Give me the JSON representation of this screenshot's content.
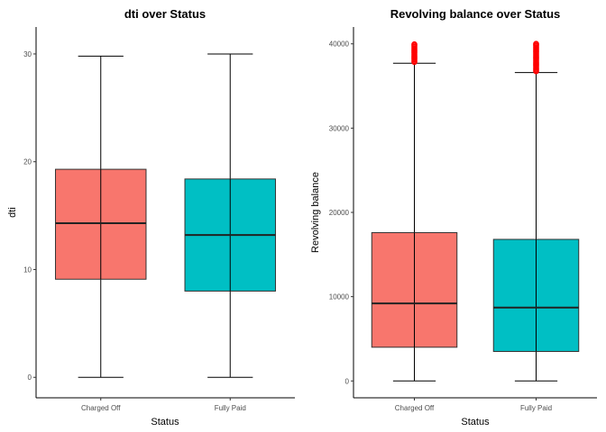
{
  "chart_data": [
    {
      "type": "box",
      "title": "dti over Status",
      "xlabel": "Status",
      "ylabel": "dti",
      "categories": [
        "Charged Off",
        "Fully Paid"
      ],
      "ylim": [
        -1.9,
        32.5
      ],
      "yticks": [
        0,
        10,
        20,
        30
      ],
      "grid": false,
      "boxes": [
        {
          "category": "Charged Off",
          "min": 0,
          "q1": 9.1,
          "median": 14.3,
          "q3": 19.3,
          "max": 29.8,
          "color": "#F8766D",
          "outliers": []
        },
        {
          "category": "Fully Paid",
          "min": 0,
          "q1": 8.0,
          "median": 13.2,
          "q3": 18.4,
          "max": 30.0,
          "color": "#00BFC4",
          "outliers": []
        }
      ]
    },
    {
      "type": "box",
      "title": "Revolving balance over Status",
      "xlabel": "Status",
      "ylabel": "Revolving balance",
      "categories": [
        "Charged Off",
        "Fully Paid"
      ],
      "ylim": [
        -2000,
        42000
      ],
      "yticks": [
        0,
        10000,
        20000,
        30000,
        40000
      ],
      "grid": false,
      "outlier_color": "#FF0000",
      "boxes": [
        {
          "category": "Charged Off",
          "min": 0,
          "q1": 4000,
          "median": 9200,
          "q3": 17600,
          "max": 37700,
          "color": "#F8766D",
          "outliers": [
            37850,
            38000,
            38150,
            38300,
            38450,
            38600,
            38750,
            38900,
            39050,
            39200,
            39350,
            39500,
            39650,
            39800,
            39950
          ]
        },
        {
          "category": "Fully Paid",
          "min": 0,
          "q1": 3500,
          "median": 8700,
          "q3": 16800,
          "max": 36600,
          "color": "#00BFC4",
          "outliers": [
            36750,
            36900,
            37050,
            37200,
            37350,
            37500,
            37650,
            37800,
            37950,
            38100,
            38250,
            38400,
            38550,
            38700,
            38850,
            39000,
            39150,
            39300,
            39450,
            39600,
            39750,
            39900,
            40000
          ]
        }
      ]
    }
  ]
}
